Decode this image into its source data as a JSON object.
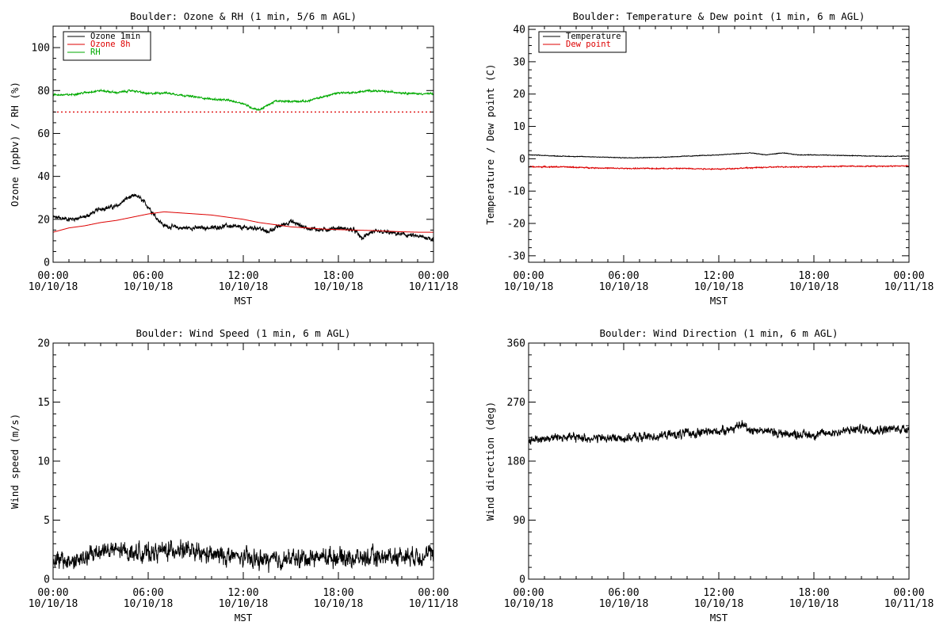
{
  "chart_data": [
    {
      "type": "line",
      "title": "Boulder: Ozone & RH (1 min, 5/6 m AGL)",
      "xlabel": "MST",
      "ylabel": "Ozone (ppbv) / RH (%)",
      "xlim": [
        0,
        24
      ],
      "ylim": [
        0,
        110
      ],
      "yticks": [
        "0",
        "20",
        "40",
        "60",
        "80",
        "100"
      ],
      "ytick_values": [
        0,
        20,
        40,
        60,
        80,
        100
      ],
      "xticks": [
        {
          "time": "00:00",
          "date": "10/10/18"
        },
        {
          "time": "06:00",
          "date": "10/10/18"
        },
        {
          "time": "12:00",
          "date": "10/10/18"
        },
        {
          "time": "18:00",
          "date": "10/10/18"
        },
        {
          "time": "00:00",
          "date": "10/11/18"
        }
      ],
      "xtick_values": [
        0,
        6,
        12,
        18,
        24
      ],
      "legend_position": "top-left",
      "reference_line": {
        "y": 70,
        "color": "#dd0000",
        "style": "dotted"
      },
      "series": [
        {
          "name": "Ozone 1min",
          "color": "#000000",
          "noise": 1.2,
          "x": [
            0,
            1,
            2,
            3,
            4,
            4.7,
            5.3,
            6,
            6.5,
            7,
            8,
            9,
            10,
            11,
            12,
            13,
            13.5,
            14,
            15,
            16,
            17,
            18,
            19,
            19.5,
            20,
            21,
            22,
            23,
            24
          ],
          "y": [
            21,
            20,
            21,
            25,
            26,
            30,
            31,
            26,
            21,
            17,
            16,
            16,
            16,
            17,
            16,
            16,
            14,
            16,
            19,
            16,
            15,
            16,
            15,
            11,
            14,
            14,
            13,
            12,
            11
          ]
        },
        {
          "name": "Ozone 8h",
          "color": "#dd0000",
          "noise": 0,
          "x": [
            0,
            1,
            2,
            3,
            4,
            5,
            6,
            7,
            8,
            9,
            10,
            11,
            12,
            13,
            14,
            15,
            16,
            17,
            18,
            19,
            20,
            21,
            22,
            23,
            24
          ],
          "y": [
            14,
            16,
            17,
            18.5,
            19.5,
            21,
            22.5,
            23.5,
            23,
            22.5,
            22,
            21,
            20,
            18.5,
            17.5,
            16.5,
            16,
            15.5,
            15.2,
            15,
            14.8,
            14.5,
            14.2,
            14,
            14
          ]
        },
        {
          "name": "RH",
          "color": "#00aa00",
          "noise": 0.5,
          "x": [
            0,
            1,
            2,
            3,
            4,
            5,
            6,
            7,
            8,
            9,
            10,
            11,
            12,
            12.5,
            13,
            13.5,
            14,
            15,
            16,
            17,
            18,
            19,
            20,
            21,
            22,
            23,
            24
          ],
          "y": [
            78,
            78,
            79,
            80,
            79,
            80,
            78.5,
            79,
            78,
            77,
            76,
            75.5,
            74,
            72,
            71,
            73,
            75,
            75,
            75,
            77,
            79,
            79,
            80,
            79.5,
            79,
            78.5,
            78.5
          ]
        }
      ]
    },
    {
      "type": "line",
      "title": "Boulder: Temperature & Dew point (1 min, 6 m AGL)",
      "xlabel": "MST",
      "ylabel": "Temperature / Dew point (C)",
      "xlim": [
        0,
        24
      ],
      "ylim": [
        -32,
        41
      ],
      "yticks": [
        "-30",
        "-20",
        "-10",
        "0",
        "10",
        "20",
        "30",
        "40"
      ],
      "ytick_values": [
        -30,
        -20,
        -10,
        0,
        10,
        20,
        30,
        40
      ],
      "xticks": [
        {
          "time": "00:00",
          "date": "10/10/18"
        },
        {
          "time": "06:00",
          "date": "10/10/18"
        },
        {
          "time": "12:00",
          "date": "10/10/18"
        },
        {
          "time": "18:00",
          "date": "10/10/18"
        },
        {
          "time": "00:00",
          "date": "10/11/18"
        }
      ],
      "xtick_values": [
        0,
        6,
        12,
        18,
        24
      ],
      "legend_position": "top-left",
      "series": [
        {
          "name": "Temperature",
          "color": "#000000",
          "noise": 0.12,
          "x": [
            0,
            2,
            4,
            6,
            8,
            10,
            12,
            13,
            14,
            15,
            16,
            17,
            18,
            20,
            22,
            24
          ],
          "y": [
            1.2,
            0.8,
            0.6,
            0.3,
            0.4,
            0.8,
            1.2,
            1.5,
            1.8,
            1.2,
            1.8,
            1.2,
            1.2,
            1.0,
            0.8,
            0.8
          ]
        },
        {
          "name": "Dew point",
          "color": "#dd0000",
          "noise": 0.2,
          "x": [
            0,
            2,
            4,
            6,
            8,
            10,
            12,
            14,
            16,
            18,
            20,
            22,
            24
          ],
          "y": [
            -2.5,
            -2.5,
            -2.8,
            -3.0,
            -3.0,
            -3.0,
            -3.2,
            -2.8,
            -2.5,
            -2.5,
            -2.3,
            -2.3,
            -2.2
          ]
        }
      ]
    },
    {
      "type": "line",
      "title": "Boulder: Wind Speed (1 min, 6 m AGL)",
      "xlabel": "MST",
      "ylabel": "Wind speed (m/s)",
      "xlim": [
        0,
        24
      ],
      "ylim": [
        0,
        20
      ],
      "yticks": [
        "0",
        "5",
        "10",
        "15",
        "20"
      ],
      "ytick_values": [
        0,
        5,
        10,
        15,
        20
      ],
      "xticks": [
        {
          "time": "00:00",
          "date": "10/10/18"
        },
        {
          "time": "06:00",
          "date": "10/10/18"
        },
        {
          "time": "12:00",
          "date": "10/10/18"
        },
        {
          "time": "18:00",
          "date": "10/10/18"
        },
        {
          "time": "00:00",
          "date": "10/11/18"
        }
      ],
      "xtick_values": [
        0,
        6,
        12,
        18,
        24
      ],
      "series": [
        {
          "name": "",
          "color": "#000000",
          "noise": 0.9,
          "x": [
            0,
            1,
            2,
            3,
            4,
            5,
            6,
            7,
            8,
            9,
            10,
            11,
            12,
            13,
            14,
            15,
            16,
            17,
            18,
            19,
            20,
            21,
            22,
            23,
            24
          ],
          "y": [
            1.6,
            1.5,
            1.7,
            2.5,
            2.4,
            2.3,
            2.2,
            2.4,
            2.6,
            2.2,
            2.0,
            2.0,
            1.8,
            1.6,
            1.6,
            1.7,
            1.8,
            1.9,
            1.9,
            1.8,
            1.8,
            1.9,
            2.0,
            2.0,
            2.1
          ]
        }
      ]
    },
    {
      "type": "line",
      "title": "Boulder: Wind Direction (1 min, 6 m AGL)",
      "xlabel": "MST",
      "ylabel": "Wind direction (deg)",
      "xlim": [
        0,
        24
      ],
      "ylim": [
        0,
        360
      ],
      "yticks": [
        "0",
        "90",
        "180",
        "270",
        "360"
      ],
      "ytick_values": [
        0,
        90,
        180,
        270,
        360
      ],
      "xticks": [
        {
          "time": "00:00",
          "date": "10/10/18"
        },
        {
          "time": "06:00",
          "date": "10/10/18"
        },
        {
          "time": "12:00",
          "date": "10/10/18"
        },
        {
          "time": "18:00",
          "date": "10/10/18"
        },
        {
          "time": "00:00",
          "date": "10/11/18"
        }
      ],
      "xtick_values": [
        0,
        6,
        12,
        18,
        24
      ],
      "series": [
        {
          "name": "",
          "color": "#000000",
          "noise": 8,
          "x": [
            0,
            2,
            4,
            6,
            8,
            10,
            12,
            13,
            13.5,
            14,
            15,
            16,
            18,
            20,
            21,
            22,
            24
          ],
          "y": [
            212,
            217,
            215,
            215,
            218,
            222,
            226,
            230,
            236,
            228,
            226,
            222,
            220,
            226,
            229,
            228,
            230
          ]
        }
      ]
    }
  ]
}
